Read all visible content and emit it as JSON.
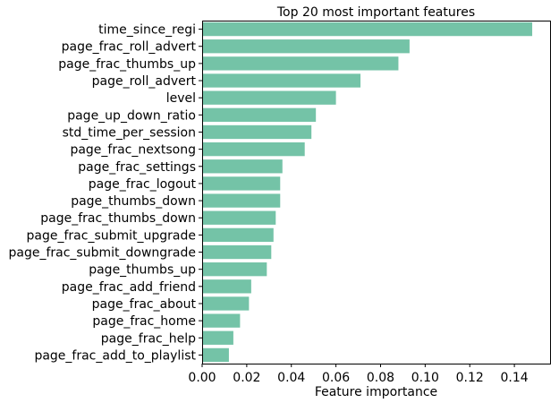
{
  "chart_data": {
    "type": "bar",
    "orientation": "horizontal",
    "title": "Top 20 most important features",
    "xlabel": "Feature importance",
    "ylabel": "",
    "xlim": [
      0,
      0.156
    ],
    "xticks": [
      "0.00",
      "0.02",
      "0.04",
      "0.06",
      "0.08",
      "0.10",
      "0.12",
      "0.14"
    ],
    "grid": false,
    "legend": "none",
    "bar_color": "#74c3a7",
    "categories": [
      "time_since_regi",
      "page_frac_roll_advert",
      "page_frac_thumbs_up",
      "page_roll_advert",
      "level",
      "page_up_down_ratio",
      "std_time_per_session",
      "page_frac_nextsong",
      "page_frac_settings",
      "page_frac_logout",
      "page_thumbs_down",
      "page_frac_thumbs_down",
      "page_frac_submit_upgrade",
      "page_frac_submit_downgrade",
      "page_thumbs_up",
      "page_frac_add_friend",
      "page_frac_about",
      "page_frac_home",
      "page_frac_help",
      "page_frac_add_to_playlist"
    ],
    "values": [
      0.148,
      0.093,
      0.088,
      0.071,
      0.06,
      0.051,
      0.049,
      0.046,
      0.036,
      0.035,
      0.035,
      0.033,
      0.032,
      0.031,
      0.029,
      0.022,
      0.021,
      0.017,
      0.014,
      0.012
    ]
  }
}
